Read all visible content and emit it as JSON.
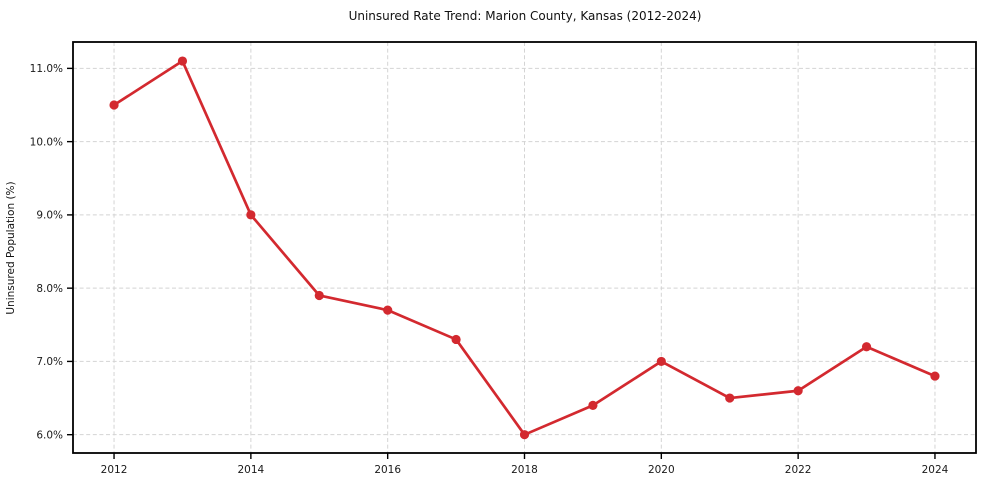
{
  "title": "Uninsured Rate Trend: Marion County, Kansas (2012-2024)",
  "chart_data": {
    "type": "line",
    "title": "Uninsured Rate Trend: Marion County, Kansas (2012-2024)",
    "xlabel": "",
    "ylabel": "Uninsured Population (%)",
    "x": [
      2012,
      2013,
      2014,
      2015,
      2016,
      2017,
      2018,
      2019,
      2020,
      2021,
      2022,
      2023,
      2024
    ],
    "values": [
      10.5,
      11.1,
      9.0,
      7.9,
      7.7,
      7.3,
      6.0,
      6.4,
      7.0,
      6.5,
      6.6,
      7.2,
      6.8
    ],
    "x_ticks": [
      2012,
      2014,
      2016,
      2018,
      2020,
      2022,
      2024
    ],
    "x_tick_labels": [
      "2012",
      "2014",
      "2016",
      "2018",
      "2020",
      "2022",
      "2024"
    ],
    "y_ticks": [
      6.0,
      7.0,
      8.0,
      9.0,
      10.0,
      11.0
    ],
    "y_tick_labels": [
      "6.0%",
      "7.0%",
      "8.0%",
      "9.0%",
      "10.0%",
      "11.0%"
    ],
    "xlim": [
      2011.4,
      2024.6
    ],
    "ylim": [
      5.75,
      11.36
    ],
    "grid": true,
    "grid_style": "dashed",
    "legend": "none",
    "line_color": "#d3292f",
    "marker": "circle",
    "background_color": "#ffffff"
  }
}
